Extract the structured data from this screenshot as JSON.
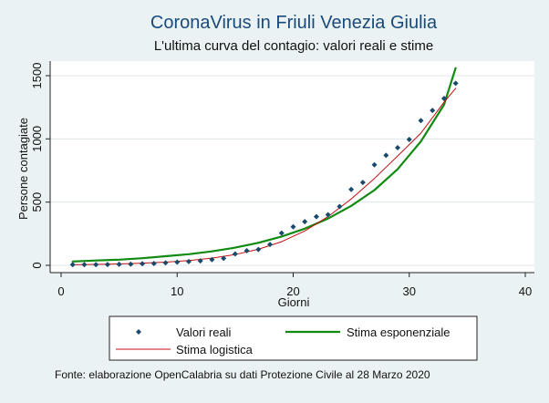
{
  "chart_data": {
    "type": "scatter",
    "title": "CoronaVirus in Friuli Venezia Giulia",
    "subtitle": "L'ultima curva del contagio: valori reali e stime",
    "xlabel": "Giorni",
    "ylabel": "Persone contagiate",
    "xlim": [
      0,
      40
    ],
    "ylim": [
      0,
      1550
    ],
    "xticks": [
      0,
      10,
      20,
      30,
      40
    ],
    "yticks": [
      0,
      500,
      1000,
      1500
    ],
    "grid": "horizontal",
    "legend_position": "bottom",
    "note": "Fonte: elaborazione OpenCalabria su dati Protezione Civile al 28 Marzo 2020",
    "colors": {
      "background": "#eaf2f3",
      "plot": "#ffffff",
      "title": "#1a4a7a",
      "points": "#1a4a6b",
      "exponential": "#118a11",
      "logistic": "#c40f0f",
      "grid": "#dde5e8"
    },
    "series": [
      {
        "name": "Valori reali",
        "kind": "points",
        "x": [
          1,
          2,
          3,
          4,
          5,
          6,
          7,
          8,
          9,
          10,
          11,
          12,
          13,
          14,
          15,
          16,
          17,
          18,
          19,
          20,
          21,
          22,
          23,
          24,
          25,
          26,
          27,
          28,
          29,
          30,
          31,
          32,
          33,
          34
        ],
        "y": [
          5,
          5,
          5,
          6,
          8,
          9,
          13,
          14,
          20,
          25,
          30,
          35,
          45,
          55,
          90,
          115,
          125,
          165,
          255,
          305,
          345,
          385,
          400,
          465,
          600,
          655,
          795,
          870,
          930,
          995,
          1145,
          1225,
          1320,
          1440
        ]
      },
      {
        "name": "Stima esponenziale",
        "kind": "line",
        "x": [
          1,
          3,
          5,
          7,
          9,
          11,
          13,
          15,
          17,
          19,
          21,
          23,
          25,
          27,
          29,
          31,
          33,
          34
        ],
        "y": [
          30,
          38,
          45,
          56,
          72,
          88,
          110,
          140,
          178,
          228,
          290,
          370,
          470,
          595,
          760,
          980,
          1270,
          1560
        ]
      },
      {
        "name": "Stima logistica",
        "kind": "line",
        "x": [
          1,
          3,
          5,
          7,
          9,
          11,
          13,
          15,
          17,
          19,
          21,
          23,
          25,
          27,
          29,
          31,
          33,
          34
        ],
        "y": [
          4,
          7,
          11,
          17,
          25,
          38,
          57,
          85,
          127,
          187,
          272,
          385,
          525,
          687,
          865,
          1045,
          1290,
          1400
        ]
      }
    ]
  }
}
